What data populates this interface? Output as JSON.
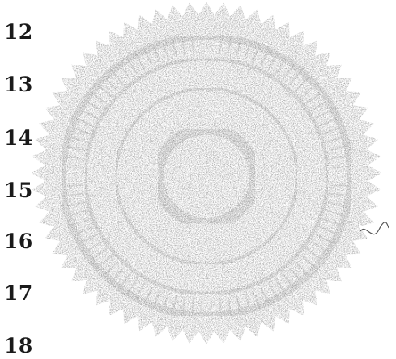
{
  "document": {
    "line_numbers": [
      "12",
      "13",
      "14",
      "15",
      "16",
      "17",
      "18"
    ]
  },
  "seal": {
    "kind": "embossed-notary-seal",
    "ink_color": "#8a8a8a",
    "edge": "serrated"
  }
}
